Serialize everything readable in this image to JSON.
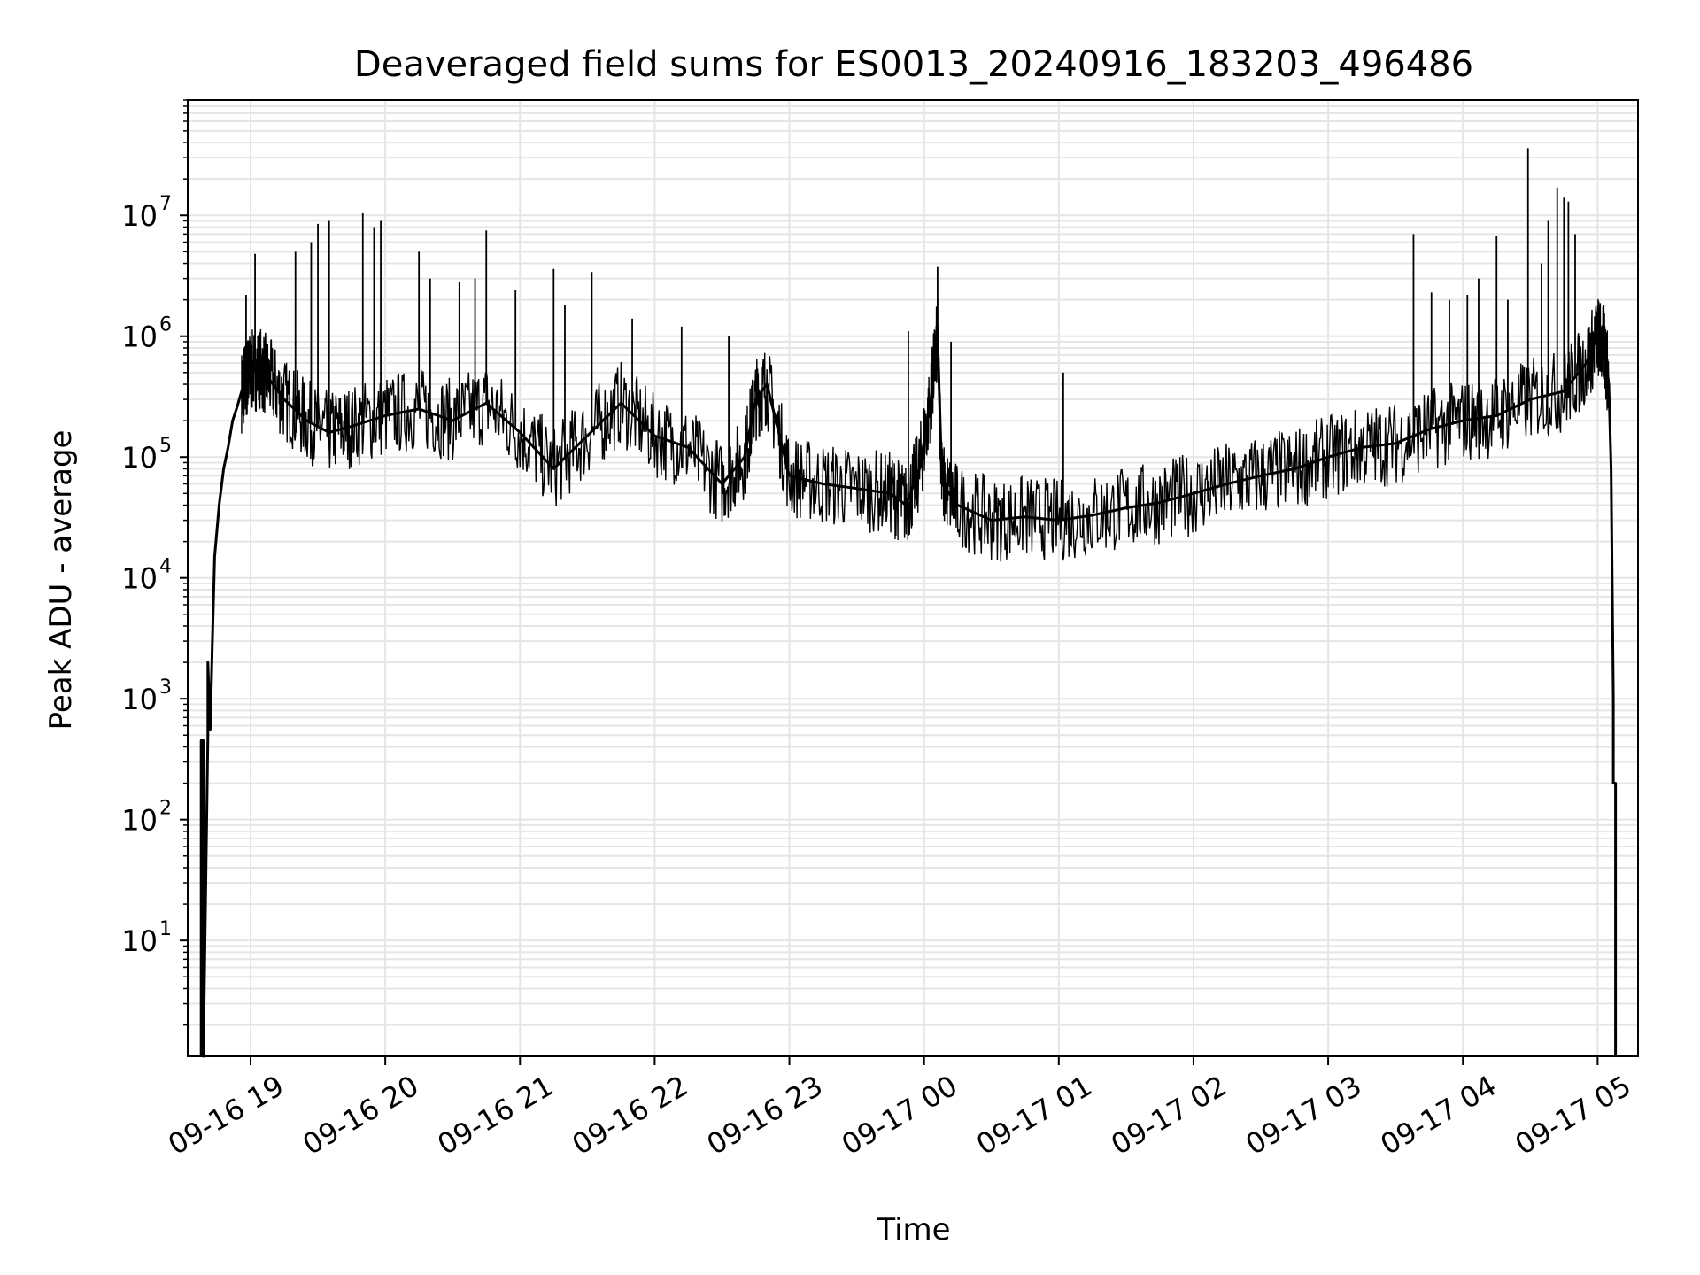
{
  "chart_data": {
    "type": "line",
    "title": "Deaveraged field sums for ES0013_20240916_183203_496486",
    "xlabel": "Time",
    "ylabel": "Peak ADU - average",
    "yscale": "log",
    "ylim": [
      1.1,
      90000000
    ],
    "xlim": [
      "2024-09-16 18:32",
      "2024-09-17 05:18"
    ],
    "grid": "major and minor",
    "legend": "none",
    "line_color": "#000000",
    "grid_color": "#e5e5e5",
    "x_ticks": [
      {
        "value": "2024-09-16 19:00",
        "label": "09-16 19"
      },
      {
        "value": "2024-09-16 20:00",
        "label": "09-16 20"
      },
      {
        "value": "2024-09-16 21:00",
        "label": "09-16 21"
      },
      {
        "value": "2024-09-16 22:00",
        "label": "09-16 22"
      },
      {
        "value": "2024-09-16 23:00",
        "label": "09-16 23"
      },
      {
        "value": "2024-09-17 00:00",
        "label": "09-17 00"
      },
      {
        "value": "2024-09-17 01:00",
        "label": "09-17 01"
      },
      {
        "value": "2024-09-17 02:00",
        "label": "09-17 02"
      },
      {
        "value": "2024-09-17 03:00",
        "label": "09-17 03"
      },
      {
        "value": "2024-09-17 04:00",
        "label": "09-17 04"
      },
      {
        "value": "2024-09-17 05:00",
        "label": "09-17 05"
      }
    ],
    "y_ticks": [
      {
        "value": 10,
        "base": "10",
        "exp": "1"
      },
      {
        "value": 100,
        "base": "10",
        "exp": "2"
      },
      {
        "value": 1000,
        "base": "10",
        "exp": "3"
      },
      {
        "value": 10000,
        "base": "10",
        "exp": "4"
      },
      {
        "value": 100000,
        "base": "10",
        "exp": "5"
      },
      {
        "value": 1000000,
        "base": "10",
        "exp": "6"
      },
      {
        "value": 10000000,
        "base": "10",
        "exp": "7"
      }
    ],
    "series": [
      {
        "x": [
          "2024-09-16 18:38",
          "2024-09-16 18:38",
          "2024-09-16 18:39",
          "2024-09-16 18:39",
          "2024-09-16 18:41",
          "2024-09-16 18:41",
          "2024-09-16 18:42",
          "2024-09-16 18:43",
          "2024-09-16 18:44",
          "2024-09-16 18:46",
          "2024-09-16 18:48",
          "2024-09-16 18:50",
          "2024-09-16 18:52",
          "2024-09-16 18:54",
          "2024-09-16 18:56",
          "2024-09-16 18:58",
          "2024-09-16 19:00",
          "2024-09-16 19:04",
          "2024-09-16 19:08",
          "2024-09-16 19:15",
          "2024-09-16 19:25",
          "2024-09-16 19:35",
          "2024-09-16 19:45",
          "2024-09-16 20:00",
          "2024-09-16 20:15",
          "2024-09-16 20:30",
          "2024-09-16 20:45",
          "2024-09-16 21:00",
          "2024-09-16 21:15",
          "2024-09-16 21:30",
          "2024-09-16 21:45",
          "2024-09-16 22:00",
          "2024-09-16 22:15",
          "2024-09-16 22:30",
          "2024-09-16 22:40",
          "2024-09-16 22:45",
          "2024-09-16 22:50",
          "2024-09-16 23:00",
          "2024-09-16 23:15",
          "2024-09-16 23:30",
          "2024-09-16 23:45",
          "2024-09-16 23:52",
          "2024-09-16 23:58",
          "2024-09-17 00:03",
          "2024-09-17 00:06",
          "2024-09-17 00:08",
          "2024-09-17 00:15",
          "2024-09-17 00:30",
          "2024-09-17 00:45",
          "2024-09-17 01:00",
          "2024-09-17 01:15",
          "2024-09-17 01:30",
          "2024-09-17 01:45",
          "2024-09-17 02:00",
          "2024-09-17 02:15",
          "2024-09-17 02:30",
          "2024-09-17 02:45",
          "2024-09-17 03:00",
          "2024-09-17 03:15",
          "2024-09-17 03:30",
          "2024-09-17 03:45",
          "2024-09-17 04:00",
          "2024-09-17 04:15",
          "2024-09-17 04:30",
          "2024-09-17 04:45",
          "2024-09-17 04:55",
          "2024-09-17 05:00",
          "2024-09-17 05:03",
          "2024-09-17 05:05",
          "2024-09-17 05:06",
          "2024-09-17 05:07",
          "2024-09-17 05:07",
          "2024-09-17 05:08",
          "2024-09-17 05:08"
        ],
        "y": [
          1.1,
          450,
          450,
          1.1,
          500,
          2000,
          550,
          3000,
          15000,
          40000,
          80000,
          120000,
          200000,
          260000,
          350000,
          450000,
          500000,
          550000,
          450000,
          300000,
          200000,
          160000,
          180000,
          220000,
          250000,
          200000,
          280000,
          160000,
          80000,
          150000,
          280000,
          150000,
          120000,
          60000,
          100000,
          300000,
          400000,
          70000,
          60000,
          55000,
          50000,
          40000,
          80000,
          300000,
          1000000,
          60000,
          40000,
          30000,
          32000,
          30000,
          33000,
          38000,
          42000,
          50000,
          60000,
          70000,
          80000,
          100000,
          120000,
          130000,
          170000,
          200000,
          220000,
          300000,
          350000,
          600000,
          1000000,
          800000,
          400000,
          80000,
          1000,
          200,
          200,
          1.1
        ]
      }
    ],
    "spikes": [
      {
        "x": "2024-09-16 18:58",
        "y": 2200000
      },
      {
        "x": "2024-09-16 19:02",
        "y": 4800000
      },
      {
        "x": "2024-09-16 19:20",
        "y": 5000000
      },
      {
        "x": "2024-09-16 19:27",
        "y": 6000000
      },
      {
        "x": "2024-09-16 19:30",
        "y": 8500000
      },
      {
        "x": "2024-09-16 19:35",
        "y": 9000000
      },
      {
        "x": "2024-09-16 19:50",
        "y": 10500000
      },
      {
        "x": "2024-09-16 19:55",
        "y": 8000000
      },
      {
        "x": "2024-09-16 19:58",
        "y": 9000000
      },
      {
        "x": "2024-09-16 20:15",
        "y": 5000000
      },
      {
        "x": "2024-09-16 20:20",
        "y": 3000000
      },
      {
        "x": "2024-09-16 20:33",
        "y": 2800000
      },
      {
        "x": "2024-09-16 20:40",
        "y": 3000000
      },
      {
        "x": "2024-09-16 20:45",
        "y": 7500000
      },
      {
        "x": "2024-09-16 20:58",
        "y": 2400000
      },
      {
        "x": "2024-09-16 21:15",
        "y": 3600000
      },
      {
        "x": "2024-09-16 21:20",
        "y": 1800000
      },
      {
        "x": "2024-09-16 21:32",
        "y": 3400000
      },
      {
        "x": "2024-09-16 21:50",
        "y": 1400000
      },
      {
        "x": "2024-09-16 22:12",
        "y": 1200000
      },
      {
        "x": "2024-09-16 22:33",
        "y": 1000000
      },
      {
        "x": "2024-09-16 23:53",
        "y": 1100000
      },
      {
        "x": "2024-09-17 00:06",
        "y": 3800000
      },
      {
        "x": "2024-09-17 00:12",
        "y": 900000
      },
      {
        "x": "2024-09-17 01:02",
        "y": 500000
      },
      {
        "x": "2024-09-17 03:38",
        "y": 7000000
      },
      {
        "x": "2024-09-17 03:46",
        "y": 2300000
      },
      {
        "x": "2024-09-17 03:54",
        "y": 2000000
      },
      {
        "x": "2024-09-17 04:02",
        "y": 2200000
      },
      {
        "x": "2024-09-17 04:07",
        "y": 3000000
      },
      {
        "x": "2024-09-17 04:15",
        "y": 6800000
      },
      {
        "x": "2024-09-17 04:20",
        "y": 2000000
      },
      {
        "x": "2024-09-17 04:29",
        "y": 36000000
      },
      {
        "x": "2024-09-17 04:35",
        "y": 4000000
      },
      {
        "x": "2024-09-17 04:38",
        "y": 9000000
      },
      {
        "x": "2024-09-17 04:42",
        "y": 17000000
      },
      {
        "x": "2024-09-17 04:45",
        "y": 14000000
      },
      {
        "x": "2024-09-17 04:47",
        "y": 13000000
      },
      {
        "x": "2024-09-17 04:50",
        "y": 7000000
      }
    ]
  }
}
